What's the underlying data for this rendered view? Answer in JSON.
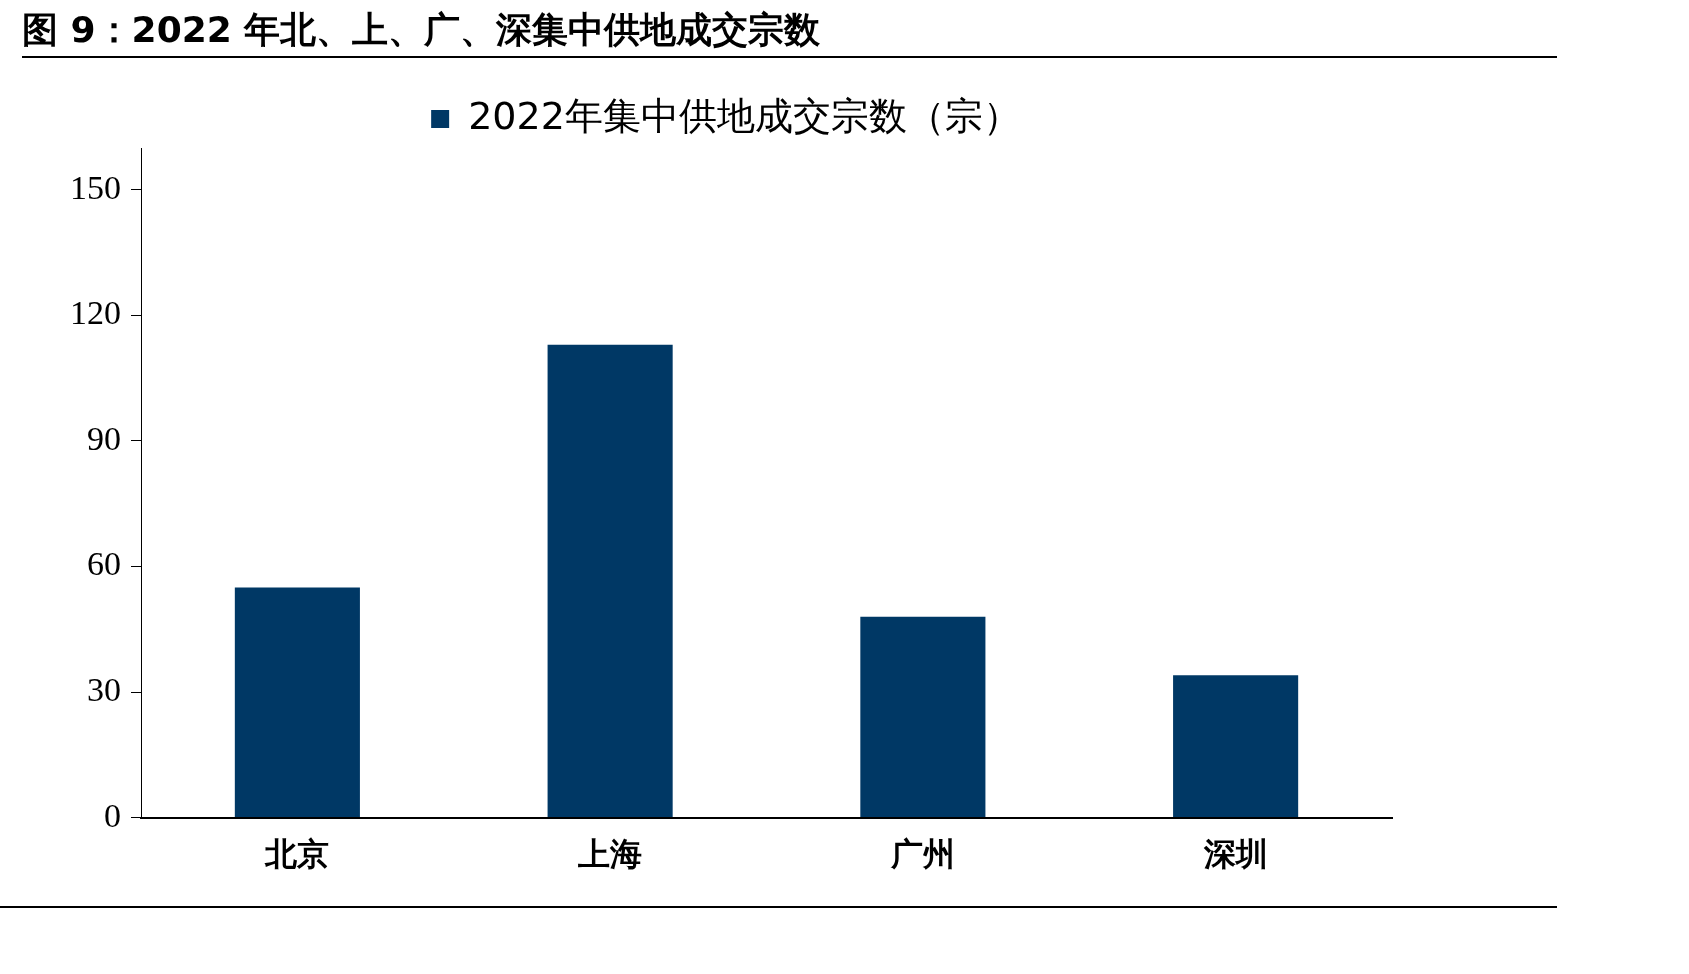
{
  "chart_data": {
    "type": "bar",
    "title": "图 9：2022 年北、上、广、深集中供地成交宗数",
    "categories": [
      "北京",
      "上海",
      "广州",
      "深圳"
    ],
    "series": [
      {
        "name": "2022年集中供地成交宗数（宗）",
        "color": "#003865",
        "values": [
          55,
          113,
          48,
          34
        ]
      }
    ],
    "ylim": [
      0,
      160
    ],
    "yticks": [
      0,
      30,
      60,
      90,
      120,
      150
    ],
    "grid": false,
    "legend": "top"
  }
}
